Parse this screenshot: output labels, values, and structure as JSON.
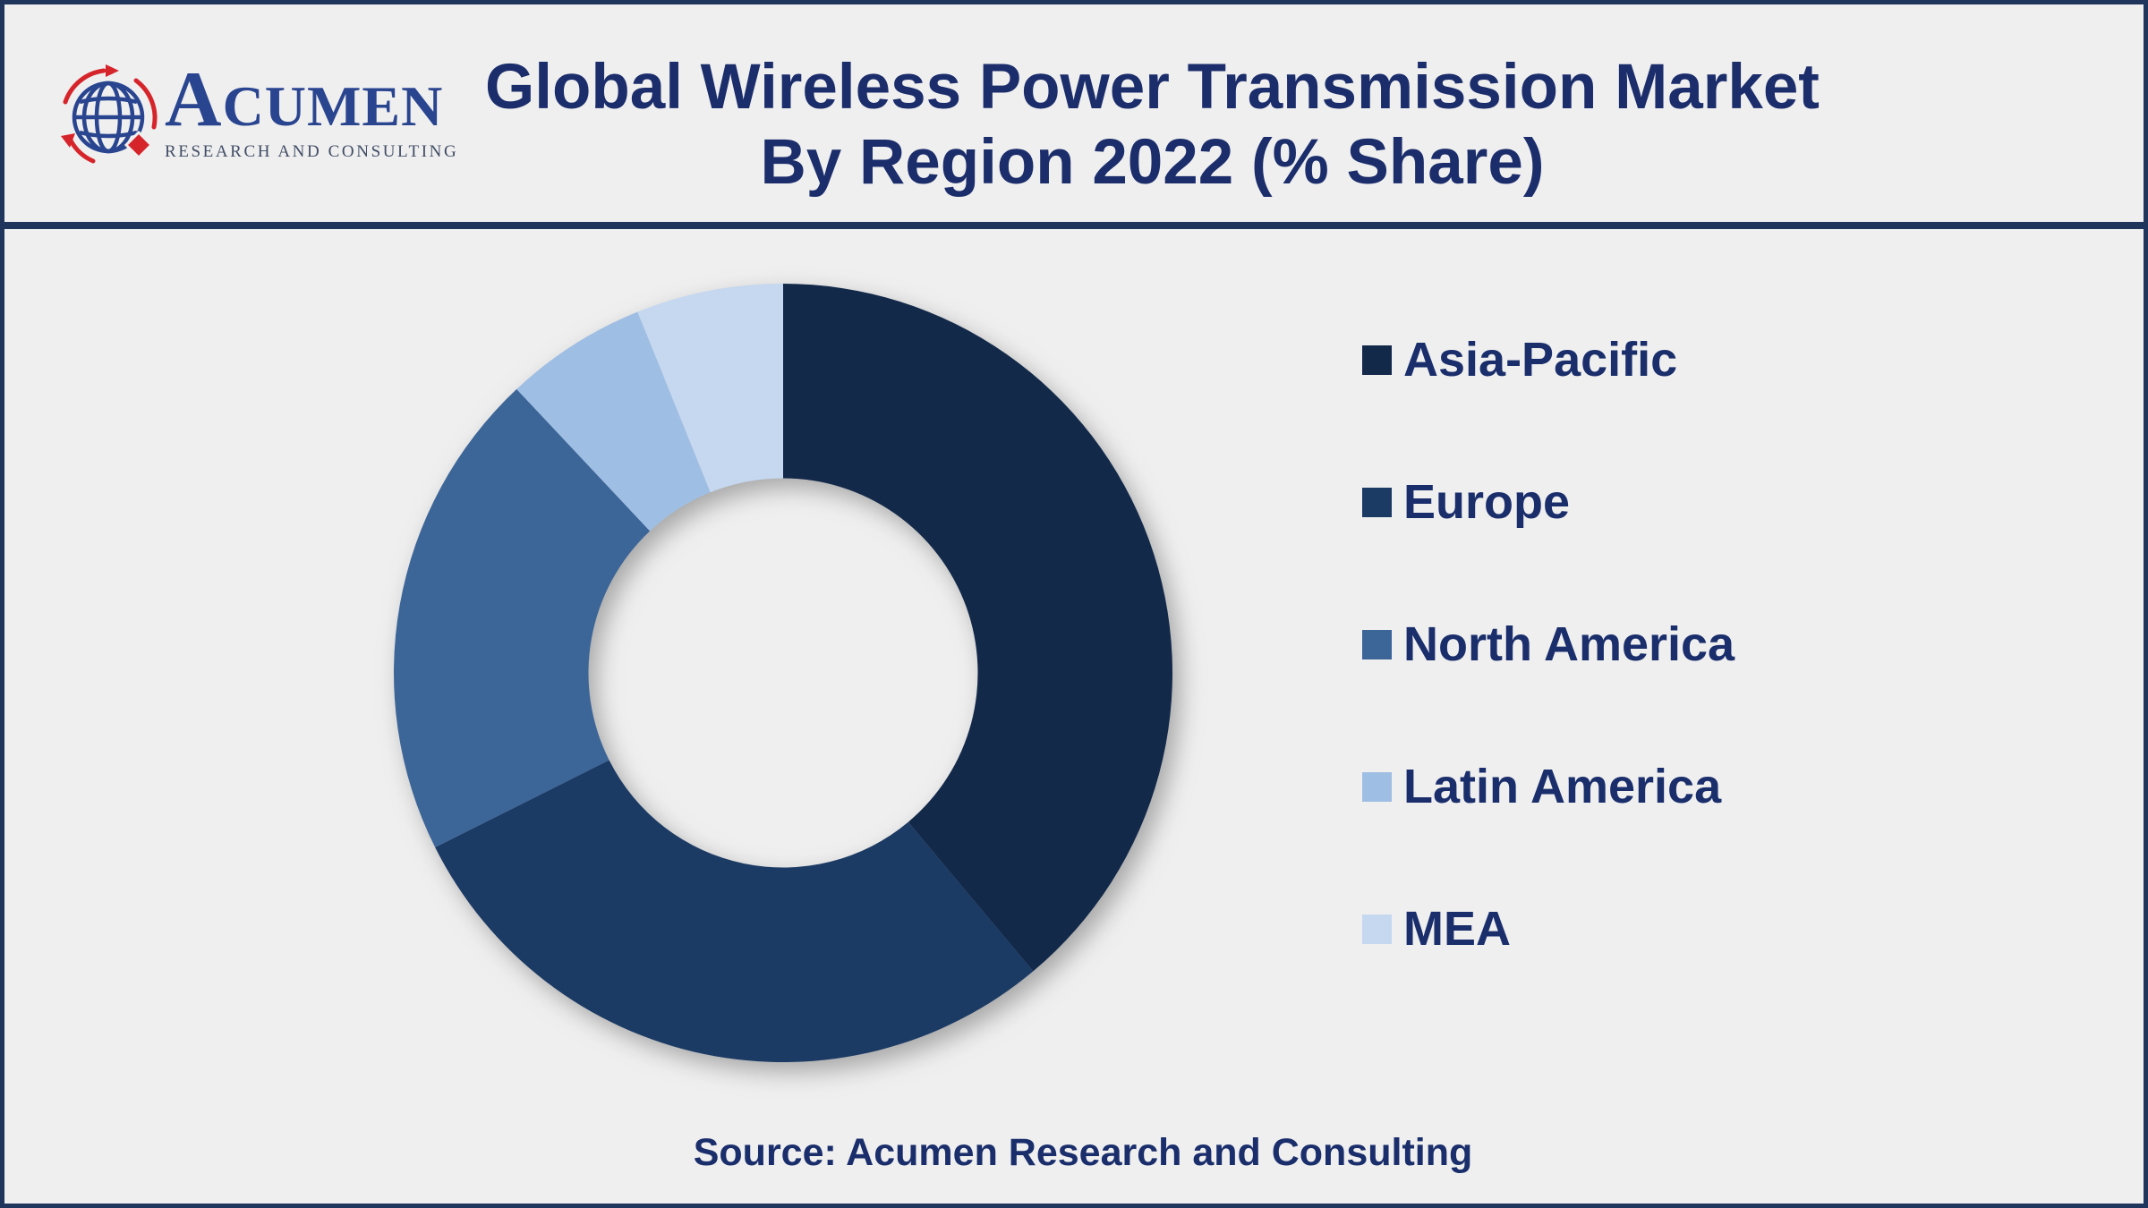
{
  "header": {
    "logo": {
      "brand": "ACUMEN",
      "tagline": "RESEARCH AND CONSULTING"
    },
    "title_line1": "Global Wireless Power Transmission Market",
    "title_line2": "By Region 2022 (% Share)"
  },
  "chart_data": {
    "type": "pie",
    "subtype": "donut",
    "title": "Global Wireless Power Transmission Market By Region 2022 (% Share)",
    "categories": [
      "Asia-Pacific",
      "Europe",
      "North America",
      "Latin America",
      "MEA"
    ],
    "values": [
      38.9,
      28.7,
      20.4,
      5.9,
      6.1
    ],
    "unit": "% share",
    "colors": [
      "#13294A",
      "#1B3A64",
      "#3C6598",
      "#9FBEE4",
      "#C5D8F0"
    ],
    "start_angle_deg": 0,
    "direction": "clockwise",
    "inner_radius_ratio": 0.5,
    "legend_position": "right",
    "data_labels": false
  },
  "legend": {
    "items": [
      {
        "label": "Asia-Pacific",
        "color": "#13294A"
      },
      {
        "label": "Europe",
        "color": "#1B3A64"
      },
      {
        "label": "North America",
        "color": "#3C6598"
      },
      {
        "label": "Latin America",
        "color": "#9FBEE4"
      },
      {
        "label": "MEA",
        "color": "#C5D8F0"
      }
    ]
  },
  "footer": {
    "source": "Source: Acumen Research and Consulting"
  },
  "theme": {
    "background": "#EFEFEF",
    "border_color": "#20355C",
    "title_color": "#1B2D6B",
    "text_color": "#1A2E6C",
    "logo_blue": "#2A4590",
    "logo_red": "#D6242B"
  }
}
